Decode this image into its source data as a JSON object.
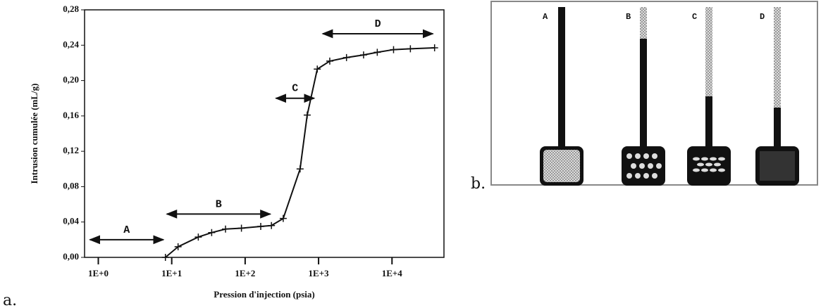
{
  "chart_data": {
    "type": "line",
    "xscale": "log",
    "color": "#111111",
    "ylabel": "Intrusion cumulée (mL/g)",
    "xlabel": "Pression d'injection (psia)",
    "x": [
      8.2,
      12.2,
      23,
      35,
      54,
      89,
      163,
      228,
      330,
      560,
      700,
      960,
      1420,
      2400,
      4100,
      6300,
      10500,
      17800,
      38000
    ],
    "values": [
      0,
      0.012,
      0.023,
      0.028,
      0.032,
      0.033,
      0.035,
      0.036,
      0.044,
      0.1,
      0.161,
      0.213,
      0.222,
      0.226,
      0.229,
      0.232,
      0.235,
      0.236,
      0.237
    ],
    "xlim": [
      0.65,
      51000
    ],
    "ylim": [
      0,
      0.28
    ],
    "xticks": [
      {
        "value": 1,
        "label": "1E+0"
      },
      {
        "value": 10,
        "label": "1E+1"
      },
      {
        "value": 100,
        "label": "1E+2"
      },
      {
        "value": 1000,
        "label": "1E+3"
      },
      {
        "value": 10000,
        "label": "1E+4"
      }
    ],
    "yticks": [
      {
        "value": 0,
        "label": "0,00"
      },
      {
        "value": 0.04,
        "label": "0,04"
      },
      {
        "value": 0.08,
        "label": "0,08"
      },
      {
        "value": 0.12,
        "label": "0,12"
      },
      {
        "value": 0.16,
        "label": "0,16"
      },
      {
        "value": 0.2,
        "label": "0,20"
      },
      {
        "value": 0.24,
        "label": "0,24"
      },
      {
        "value": 0.28,
        "label": "0,28"
      }
    ],
    "annotations": [
      {
        "text": "A",
        "x": [
          0.77,
          7.7
        ],
        "y": 0.02
      },
      {
        "text": "B",
        "x": [
          8.6,
          220
        ],
        "y": 0.049
      },
      {
        "text": "C",
        "x": [
          263,
          870
        ],
        "y": 0.18
      },
      {
        "text": "D",
        "x": [
          1140,
          36000
        ],
        "y": 0.253
      }
    ]
  },
  "panel_labels": [
    "a.",
    "b."
  ],
  "diagram": {
    "labels": [
      "A",
      "B",
      "C",
      "D"
    ]
  }
}
